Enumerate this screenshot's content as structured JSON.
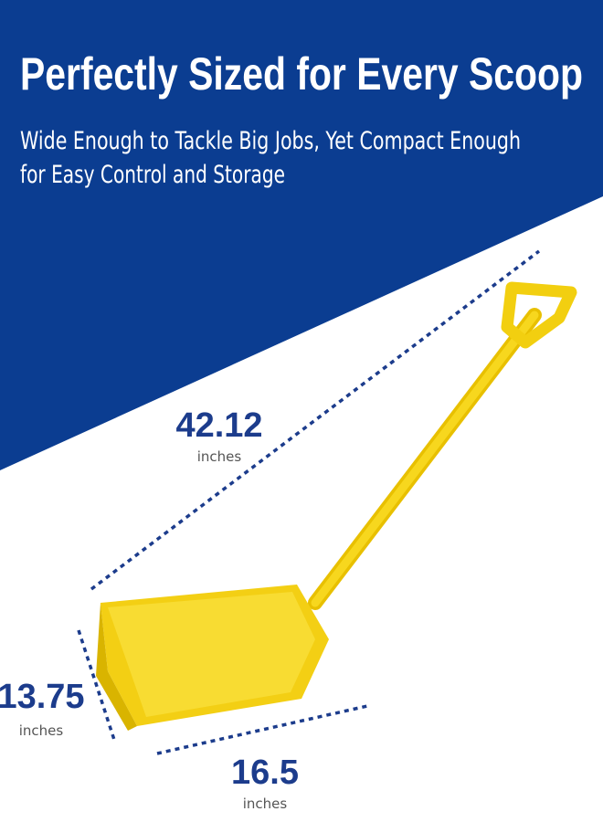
{
  "header": {
    "title": "Perfectly Sized for Every Scoop",
    "subtitle_lines": [
      "Wide Enough to Tackle Big Jobs, Yet Compact Enough",
      "for Easy Control and Storage"
    ]
  },
  "dimensions": {
    "length": {
      "value": "42.12",
      "unit": "inches"
    },
    "height": {
      "value": "13.75",
      "unit": "inches"
    },
    "width": {
      "value": "16.5",
      "unit": "inches"
    }
  }
}
